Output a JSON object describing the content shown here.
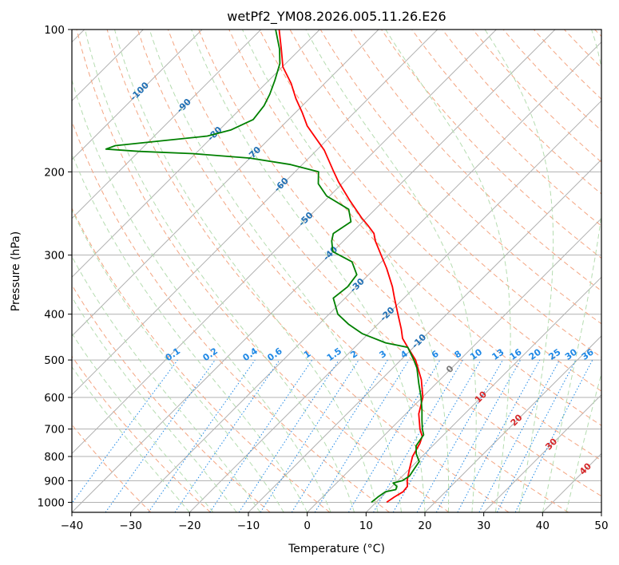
{
  "chart_data": {
    "type": "line",
    "title": "wetPf2_YM08.2026.005.11.26.E26",
    "xlabel": "Temperature (°C)",
    "ylabel": "Pressure (hPa)",
    "xlim": [
      -40,
      50
    ],
    "ylim": [
      1050,
      100
    ],
    "y_scale": "log",
    "skew": 35,
    "grid": true,
    "x_ticks": [
      "−40",
      "−30",
      "−20",
      "−10",
      "0",
      "10",
      "20",
      "30",
      "40",
      "50"
    ],
    "y_ticks": [
      "100",
      "200",
      "300",
      "400",
      "500",
      "600",
      "700",
      "800",
      "900",
      "1000"
    ],
    "colors": {
      "temperature": "#ff0000",
      "dewpoint": "#008000",
      "dry_adiabat": "#f4a582",
      "moist_adiabat": "#b5dcb0",
      "mixing_ratio": "#1e88e5",
      "grid": "#b0b0b0",
      "label_isotherm": "#1f6fb4",
      "label_red": "#d62728"
    },
    "isotherm_labels": [
      "-100",
      "-90",
      "-80",
      "-70",
      "-60",
      "-50",
      "-40",
      "-30",
      "-20",
      "-10",
      "0",
      "10",
      "20",
      "30",
      "40"
    ],
    "mixing_ratio_labels": [
      "0.1",
      "0.2",
      "0.4",
      "0.6",
      "1",
      "1.5",
      "2",
      "3",
      "4",
      "6",
      "8",
      "10",
      "13",
      "16",
      "20",
      "25",
      "30",
      "36"
    ],
    "series": [
      {
        "key": "temperature",
        "points": [
          [
            1000,
            11.8
          ],
          [
            975,
            12.2
          ],
          [
            950,
            12.8
          ],
          [
            925,
            12.6
          ],
          [
            900,
            11.6
          ],
          [
            850,
            10.0
          ],
          [
            800,
            8.4
          ],
          [
            750,
            7.4
          ],
          [
            725,
            6.6
          ],
          [
            700,
            5.0
          ],
          [
            650,
            2.2
          ],
          [
            600,
            0.1
          ],
          [
            550,
            -3.2
          ],
          [
            500,
            -7.5
          ],
          [
            470,
            -11.0
          ],
          [
            450,
            -13.4
          ],
          [
            430,
            -15.2
          ],
          [
            400,
            -18.3
          ],
          [
            370,
            -21.6
          ],
          [
            350,
            -23.9
          ],
          [
            320,
            -28.0
          ],
          [
            300,
            -31.2
          ],
          [
            280,
            -34.6
          ],
          [
            270,
            -36.1
          ],
          [
            260,
            -38.4
          ],
          [
            250,
            -40.9
          ],
          [
            230,
            -45.8
          ],
          [
            210,
            -50.9
          ],
          [
            200,
            -53.4
          ],
          [
            180,
            -58.7
          ],
          [
            160,
            -65.7
          ],
          [
            150,
            -68.8
          ],
          [
            140,
            -72.3
          ],
          [
            130,
            -75.7
          ],
          [
            120,
            -79.9
          ],
          [
            110,
            -83.2
          ],
          [
            100,
            -86.9
          ]
        ]
      },
      {
        "key": "dewpoint",
        "points": [
          [
            1000,
            9.2
          ],
          [
            975,
            9.4
          ],
          [
            950,
            9.8
          ],
          [
            940,
            11.2
          ],
          [
            925,
            10.8
          ],
          [
            910,
            9.6
          ],
          [
            900,
            10.8
          ],
          [
            880,
            11.2
          ],
          [
            850,
            10.8
          ],
          [
            820,
            10.4
          ],
          [
            790,
            8.6
          ],
          [
            760,
            7.2
          ],
          [
            720,
            6.6
          ],
          [
            700,
            5.4
          ],
          [
            670,
            3.8
          ],
          [
            640,
            2.2
          ],
          [
            600,
            -0.2
          ],
          [
            560,
            -3.0
          ],
          [
            520,
            -5.9
          ],
          [
            500,
            -7.8
          ],
          [
            470,
            -11.0
          ],
          [
            460,
            -15.5
          ],
          [
            440,
            -21.0
          ],
          [
            420,
            -25.0
          ],
          [
            400,
            -28.5
          ],
          [
            370,
            -32.0
          ],
          [
            350,
            -31.5
          ],
          [
            330,
            -32.0
          ],
          [
            310,
            -35.0
          ],
          [
            295,
            -40.0
          ],
          [
            280,
            -42.0
          ],
          [
            270,
            -43.0
          ],
          [
            255,
            -42.0
          ],
          [
            240,
            -44.5
          ],
          [
            225,
            -50.5
          ],
          [
            212,
            -54.0
          ],
          [
            200,
            -56.0
          ],
          [
            193,
            -62.0
          ],
          [
            187,
            -70.0
          ],
          [
            183,
            -80.5
          ],
          [
            181,
            -90.0
          ],
          [
            179,
            -96.0
          ],
          [
            176,
            -95.0
          ],
          [
            172,
            -88.0
          ],
          [
            168,
            -81.0
          ],
          [
            163,
            -78.0
          ],
          [
            155,
            -76.0
          ],
          [
            145,
            -76.5
          ],
          [
            137,
            -77.5
          ],
          [
            128,
            -79.0
          ],
          [
            118,
            -81.0
          ],
          [
            110,
            -83.5
          ],
          [
            100,
            -87.5
          ]
        ]
      }
    ]
  }
}
